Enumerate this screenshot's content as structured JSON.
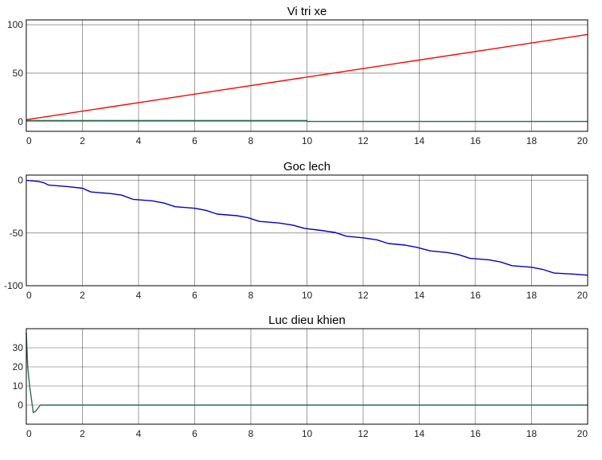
{
  "chart_data": [
    {
      "type": "line",
      "title": "Vi tri xe",
      "xlim": [
        0,
        20
      ],
      "ylim": [
        -10,
        105
      ],
      "xticks": [
        0,
        2,
        4,
        6,
        8,
        10,
        12,
        14,
        16,
        18,
        20
      ],
      "yticks": [
        0,
        50,
        100
      ],
      "grid": true,
      "series": [
        {
          "color": "#ff0000",
          "x": [
            0,
            20
          ],
          "y": [
            2,
            90
          ]
        },
        {
          "color": "#2e6b4f",
          "x": [
            0,
            10,
            10,
            20
          ],
          "y": [
            1.2,
            1.2,
            0.2,
            0.2
          ]
        }
      ]
    },
    {
      "type": "line",
      "title": "Goc lech",
      "xlim": [
        0,
        20
      ],
      "ylim": [
        -100,
        5
      ],
      "xticks": [
        0,
        2,
        4,
        6,
        8,
        10,
        12,
        14,
        16,
        18,
        20
      ],
      "yticks": [
        -100,
        -50,
        0
      ],
      "grid": true,
      "series": [
        {
          "color": "#0000cc",
          "x": [
            0,
            0.4,
            0.6,
            0.8,
            1.5,
            2.0,
            2.3,
            3.0,
            3.4,
            3.8,
            4.5,
            4.9,
            5.3,
            6.0,
            6.4,
            6.8,
            7.5,
            7.9,
            8.3,
            9.0,
            9.5,
            9.9,
            10.5,
            11.0,
            11.4,
            12.0,
            12.5,
            12.9,
            13.5,
            13.9,
            14.4,
            15.0,
            15.4,
            15.8,
            16.5,
            16.9,
            17.3,
            18.0,
            18.4,
            18.8,
            19.5,
            20.0
          ],
          "y": [
            0,
            -1,
            -2,
            -4.5,
            -6,
            -7.5,
            -11,
            -12.5,
            -14,
            -18,
            -19.5,
            -21.5,
            -25,
            -26.5,
            -28.5,
            -32,
            -33.5,
            -35.5,
            -39,
            -40.5,
            -42.5,
            -45.5,
            -47.5,
            -49.5,
            -53,
            -54.5,
            -56.5,
            -60,
            -61.5,
            -63.5,
            -67,
            -68.5,
            -70.5,
            -74,
            -75.5,
            -77.5,
            -81,
            -82.5,
            -84.5,
            -88,
            -89,
            -90
          ]
        }
      ]
    },
    {
      "type": "line",
      "title": "Luc dieu khien",
      "xlim": [
        0,
        20
      ],
      "ylim": [
        -10,
        40
      ],
      "xticks": [
        0,
        2,
        4,
        6,
        8,
        10,
        12,
        14,
        16,
        18,
        20
      ],
      "yticks": [
        0,
        10,
        20,
        30
      ],
      "grid": true,
      "series": [
        {
          "color": "#2e6b4f",
          "x": [
            0,
            0.05,
            0.12,
            0.25,
            0.35,
            0.5,
            20
          ],
          "y": [
            38,
            20,
            10,
            -4,
            -3,
            0,
            0
          ]
        }
      ]
    }
  ]
}
